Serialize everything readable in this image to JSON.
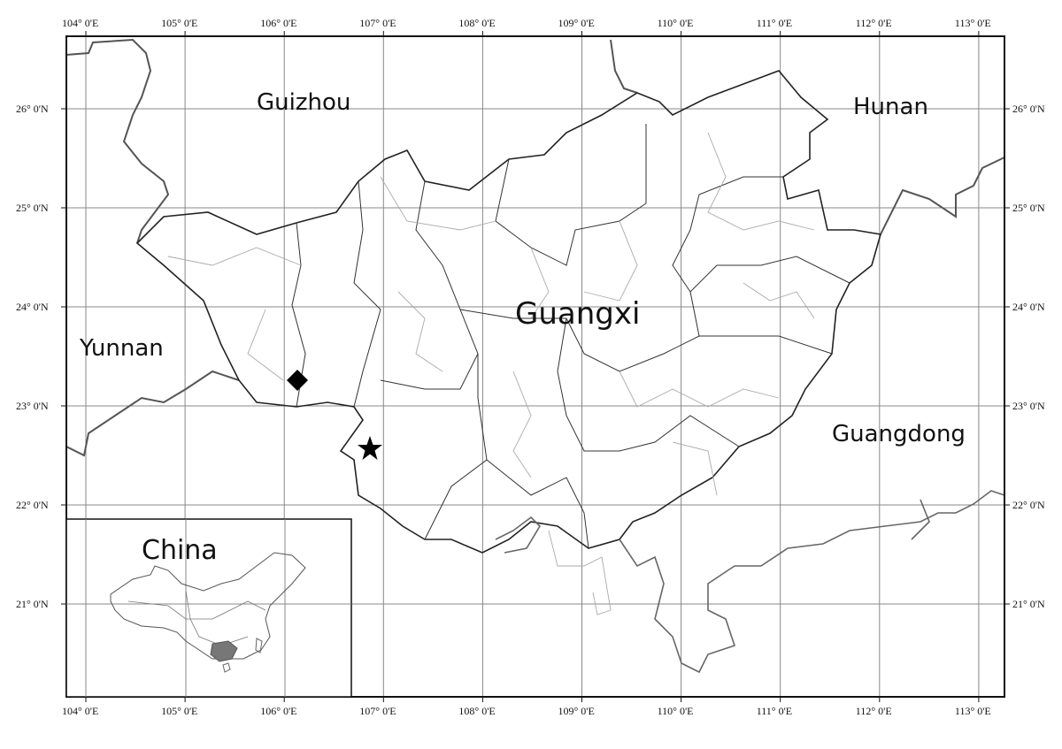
{
  "map": {
    "longitude_labels": [
      "104° 0'E",
      "105° 0'E",
      "106° 0'E",
      "107° 0'E",
      "108° 0'E",
      "109° 0'E",
      "110° 0'E",
      "111° 0'E",
      "112° 0'E",
      "113° 0'E"
    ],
    "latitude_labels": [
      "26° 0'N",
      "25° 0'N",
      "24° 0'N",
      "23° 0'N",
      "22° 0'N",
      "21° 0'N"
    ],
    "regions": {
      "guizhou": "Guizhou",
      "hunan": "Hunan",
      "yunnan": "Yunnan",
      "guangxi": "Guangxi",
      "guangdong": "Guangdong"
    },
    "inset": {
      "label": "China",
      "highlight_color": "#777777"
    },
    "markers": [
      {
        "symbol": "diamond-icon",
        "lon": 106.12,
        "lat": 23.26
      },
      {
        "symbol": "star-icon",
        "lon": 106.85,
        "lat": 22.57
      }
    ],
    "colors": {
      "border": "#222222",
      "county_border": "#aaaaaa",
      "coast": "#666666",
      "grid": "#888888"
    }
  }
}
